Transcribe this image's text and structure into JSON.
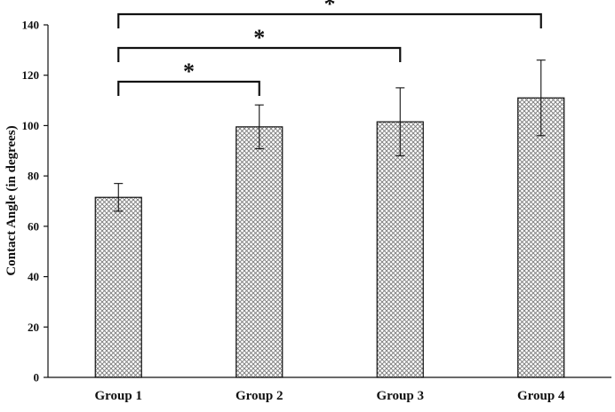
{
  "chart_data": {
    "type": "bar",
    "title": "",
    "xlabel": "",
    "ylabel": "Contact Angle (in degrees)",
    "ylim": [
      0,
      140
    ],
    "yticks": [
      0,
      20,
      40,
      60,
      80,
      100,
      120,
      140
    ],
    "grid": false,
    "legend": "none",
    "categories": [
      "Group 1",
      "Group 2",
      "Group 3",
      "Group 4"
    ],
    "values": [
      71.5,
      99.5,
      101.5,
      111
    ],
    "error": [
      5.5,
      8.7,
      13.5,
      15
    ],
    "bar_fill": "crosshatch",
    "colors": {
      "bar_pattern": "#7a7a7a",
      "bar_background": "#ffffff",
      "line": "#111111"
    },
    "significance": [
      {
        "from": "Group 1",
        "to": "Group 2",
        "label": "*"
      },
      {
        "from": "Group 1",
        "to": "Group 3",
        "label": "*"
      },
      {
        "from": "Group 1",
        "to": "Group 4",
        "label": "*"
      }
    ]
  }
}
